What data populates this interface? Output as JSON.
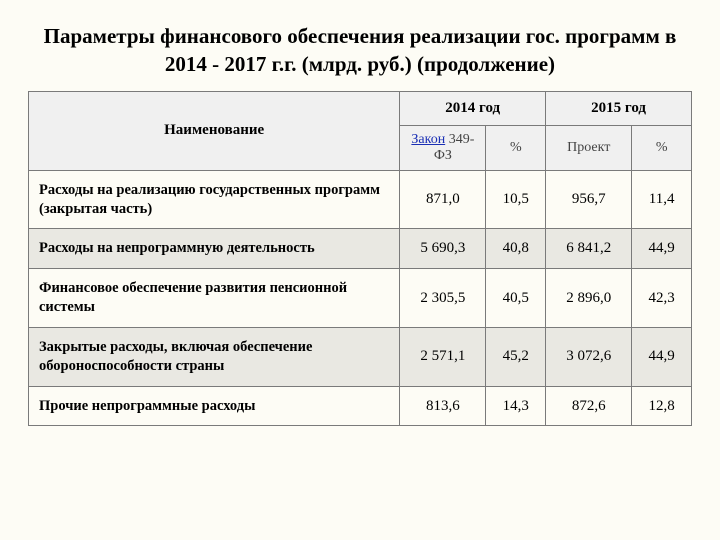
{
  "title": "Параметры финансового обеспечения реализации гос. программ в 2014 - 2017 г.г. (млрд. руб.) (продолжение)",
  "headers": {
    "name": "Наименование",
    "year2014": "2014 год",
    "year2015": "2015 год",
    "law_link": "Закон",
    "law_suffix": " 349-ФЗ",
    "pct2014": "%",
    "proj": "Проект",
    "pct2015": "%"
  },
  "rows": [
    {
      "name": "Расходы на реализацию государственных программ (закрытая часть)",
      "v2014": "871,0",
      "p2014": "10,5",
      "v2015": "956,7",
      "p2015": "11,4"
    },
    {
      "name": "Расходы на непрограммную деятельность",
      "v2014": "5 690,3",
      "p2014": "40,8",
      "v2015": "6 841,2",
      "p2015": "44,9"
    },
    {
      "name": "Финансовое обеспечение развития пенсионной системы",
      "v2014": "2 305,5",
      "p2014": "40,5",
      "v2015": "2 896,0",
      "p2015": "42,3"
    },
    {
      "name": "Закрытые расходы, включая обеспечение обороноспособности страны",
      "v2014": "2 571,1",
      "p2014": "45,2",
      "v2015": "3 072,6",
      "p2015": "44,9"
    },
    {
      "name": "Прочие непрограммные расходы",
      "v2014": "813,6",
      "p2014": "14,3",
      "v2015": "872,6",
      "p2015": "12,8"
    }
  ],
  "style": {
    "background": "#fdfcf5",
    "header_bg": "#f0f0f0",
    "alt_row_bg": "#e9e8e2",
    "border": "#7a7a7a",
    "link_color": "#1a2fb5",
    "title_fontsize": 21,
    "cell_fontsize": 15
  }
}
